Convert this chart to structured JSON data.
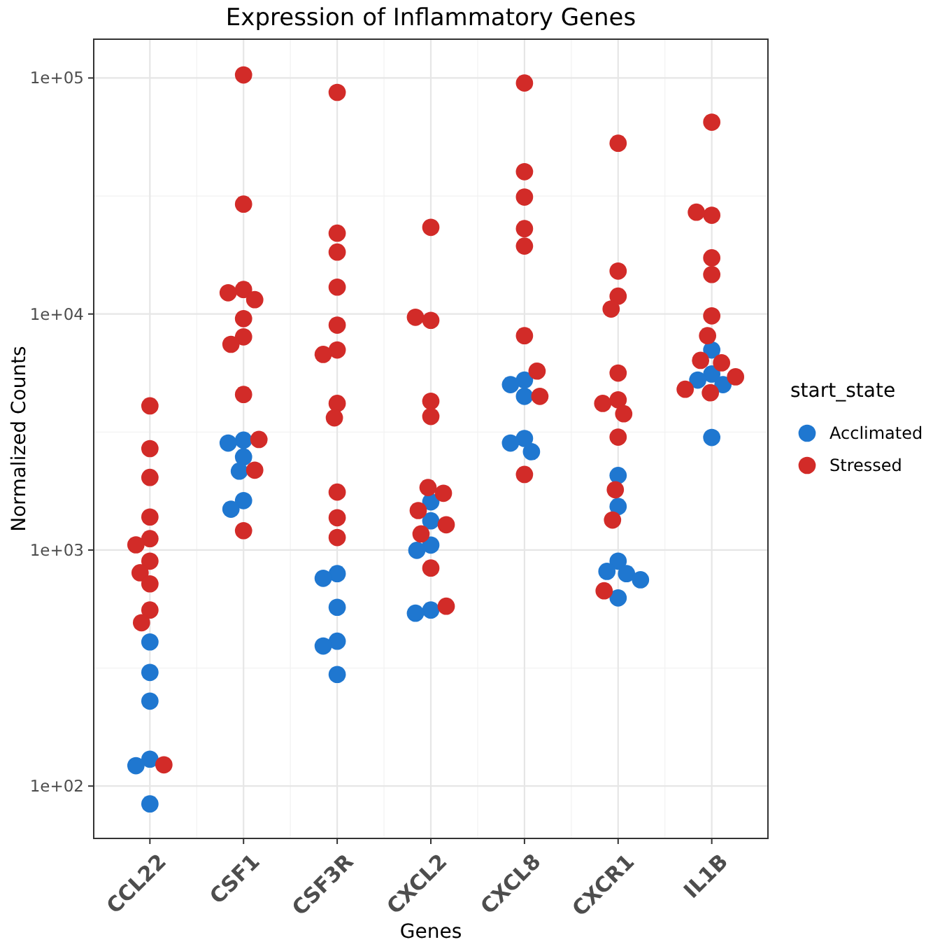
{
  "chart_data": {
    "type": "scatter",
    "title": "Expression of Inflammatory Genes",
    "xlabel": "Genes",
    "ylabel": "Normalized Counts",
    "legend_title": "start_state",
    "legend": "right",
    "grid": true,
    "marker": "circle",
    "log": "y",
    "categories": [
      "CCL22",
      "CSF1",
      "CSF3R",
      "CXCL2",
      "CXCL8",
      "CXCR1",
      "IL1B"
    ],
    "ylim": [
      60,
      146000
    ],
    "yticks": [
      {
        "value": 100,
        "label": "1e+02"
      },
      {
        "value": 1000,
        "label": "1e+03"
      },
      {
        "value": 10000,
        "label": "1e+04"
      },
      {
        "value": 100000,
        "label": "1e+05"
      }
    ],
    "series": [
      {
        "name": "Acclimated",
        "color": "#1f77d0",
        "x": [
          "CCL22",
          "CCL22",
          "CCL22",
          "CCL22",
          "CCL22",
          "CCL22",
          "CSF1",
          "CSF1",
          "CSF1",
          "CSF1",
          "CSF1",
          "CSF1",
          "CSF3R",
          "CSF3R",
          "CSF3R",
          "CSF3R",
          "CSF3R",
          "CSF3R",
          "CXCL2",
          "CXCL2",
          "CXCL2",
          "CXCL2",
          "CXCL2",
          "CXCL2",
          "CXCL8",
          "CXCL8",
          "CXCL8",
          "CXCL8",
          "CXCL8",
          "CXCL8",
          "CXCR1",
          "CXCR1",
          "CXCR1",
          "CXCR1",
          "CXCR1",
          "CXCR1",
          "CXCR1",
          "IL1B",
          "IL1B",
          "IL1B",
          "IL1B",
          "IL1B"
        ],
        "values": [
          408,
          303,
          229,
          130,
          122,
          84,
          2920,
          2840,
          2480,
          2160,
          1620,
          1490,
          794,
          759,
          572,
          411,
          392,
          297,
          1600,
          1330,
          1050,
          997,
          557,
          540,
          5250,
          5020,
          4480,
          2970,
          2840,
          2610,
          2070,
          1530,
          897,
          812,
          794,
          748,
          627,
          7040,
          5570,
          5250,
          5020,
          3000
        ]
      },
      {
        "name": "Stressed",
        "color": "#d22b28",
        "x": [
          "CCL22",
          "CCL22",
          "CCL22",
          "CCL22",
          "CCL22",
          "CCL22",
          "CCL22",
          "CCL22",
          "CCL22",
          "CCL22",
          "CCL22",
          "CCL22",
          "CSF1",
          "CSF1",
          "CSF1",
          "CSF1",
          "CSF1",
          "CSF1",
          "CSF1",
          "CSF1",
          "CSF1",
          "CSF1",
          "CSF1",
          "CSF1",
          "CSF3R",
          "CSF3R",
          "CSF3R",
          "CSF3R",
          "CSF3R",
          "CSF3R",
          "CSF3R",
          "CSF3R",
          "CSF3R",
          "CSF3R",
          "CSF3R",
          "CSF3R",
          "CXCL2",
          "CXCL2",
          "CXCL2",
          "CXCL2",
          "CXCL2",
          "CXCL2",
          "CXCL2",
          "CXCL2",
          "CXCL2",
          "CXCL2",
          "CXCL2",
          "CXCL2",
          "CXCL8",
          "CXCL8",
          "CXCL8",
          "CXCL8",
          "CXCL8",
          "CXCL8",
          "CXCL8",
          "CXCL8",
          "CXCL8",
          "CXCR1",
          "CXCR1",
          "CXCR1",
          "CXCR1",
          "CXCR1",
          "CXCR1",
          "CXCR1",
          "CXCR1",
          "CXCR1",
          "CXCR1",
          "CXCR1",
          "CXCR1",
          "IL1B",
          "IL1B",
          "IL1B",
          "IL1B",
          "IL1B",
          "IL1B",
          "IL1B",
          "IL1B",
          "IL1B",
          "IL1B",
          "IL1B",
          "IL1B"
        ],
        "values": [
          4080,
          2690,
          2030,
          1380,
          1117,
          1052,
          897,
          801,
          719,
          557,
          492,
          123,
          103000,
          29200,
          12700,
          12300,
          11500,
          9560,
          8000,
          7440,
          4560,
          2940,
          2180,
          1208,
          86900,
          22000,
          18300,
          13000,
          8970,
          7040,
          6740,
          4180,
          3630,
          1760,
          1370,
          1130,
          23300,
          9400,
          9690,
          4270,
          3680,
          1840,
          1740,
          1470,
          1280,
          1170,
          839,
          578,
          95200,
          40100,
          31300,
          23000,
          19400,
          8090,
          5730,
          4480,
          2090,
          52900,
          15200,
          11900,
          10500,
          5620,
          4330,
          4180,
          3780,
          3010,
          1800,
          1340,
          672,
          65000,
          26200,
          27000,
          17300,
          14700,
          9820,
          8090,
          6360,
          6210,
          5420,
          4800,
          4640
        ]
      }
    ]
  }
}
